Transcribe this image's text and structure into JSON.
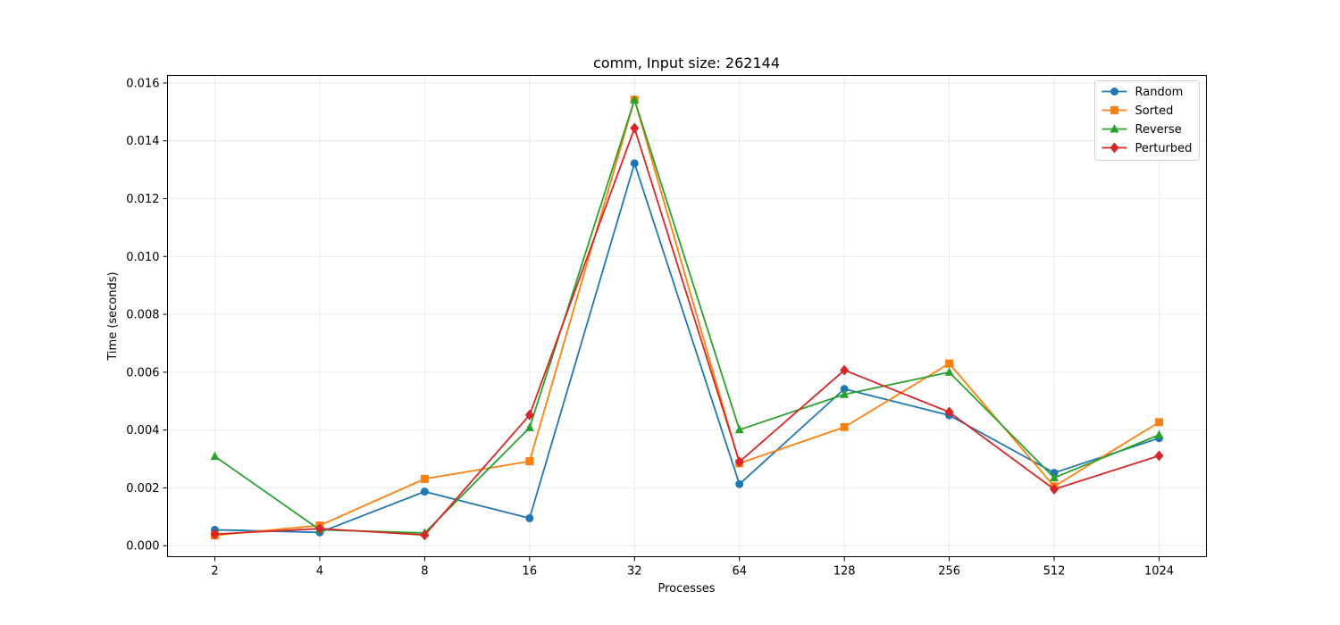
{
  "chart_data": {
    "type": "line",
    "title": "comm, Input size: 262144",
    "xlabel": "Processes",
    "ylabel": "Time (seconds)",
    "categories": [
      "2",
      "4",
      "8",
      "16",
      "32",
      "64",
      "128",
      "256",
      "512",
      "1024"
    ],
    "y_ticks": [
      "0.000",
      "0.002",
      "0.004",
      "0.006",
      "0.008",
      "0.010",
      "0.012",
      "0.014",
      "0.016"
    ],
    "ylim": [
      -0.00038,
      0.01626
    ],
    "grid": true,
    "legend_position": "top-right",
    "series": [
      {
        "name": "Random",
        "color": "#1f77b4",
        "marker": "circle",
        "values": [
          0.00055,
          0.00046,
          0.00187,
          0.00095,
          0.01322,
          0.00213,
          0.00542,
          0.00451,
          0.00252,
          0.00372
        ]
      },
      {
        "name": "Sorted",
        "color": "#ff7f0e",
        "marker": "square",
        "values": [
          0.00036,
          0.0007,
          0.00231,
          0.00292,
          0.01542,
          0.00285,
          0.0041,
          0.0063,
          0.00205,
          0.00427
        ]
      },
      {
        "name": "Reverse",
        "color": "#2ca02c",
        "marker": "triangle",
        "values": [
          0.00309,
          0.00055,
          0.00044,
          0.00408,
          0.01542,
          0.00401,
          0.00523,
          0.006,
          0.00235,
          0.00383
        ]
      },
      {
        "name": "Perturbed",
        "color": "#d62728",
        "marker": "diamond",
        "values": [
          0.0004,
          0.00059,
          0.00037,
          0.00452,
          0.01444,
          0.0029,
          0.00607,
          0.00462,
          0.00195,
          0.00311
        ]
      }
    ]
  }
}
